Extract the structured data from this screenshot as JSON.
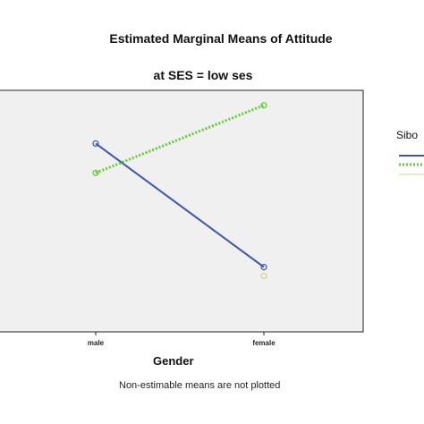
{
  "chart_data": {
    "type": "line",
    "title": "Estimated Marginal Means of Attitude",
    "subtitle": "at SES = low ses",
    "xlabel": "Gender",
    "ylabel": "",
    "categories": [
      "male",
      "female"
    ],
    "ylim": [
      0,
      1
    ],
    "grid": false,
    "legend_title": "Sibo",
    "legend_placement": "right",
    "series": [
      {
        "values": [
          0.64,
          0.22
        ],
        "color": "#3a55b4",
        "style": "solid"
      },
      {
        "values": [
          0.54,
          0.77
        ],
        "color": "#5fcf2f",
        "style": "dotted"
      },
      {
        "values": [
          null,
          0.19
        ],
        "color": "#d9cf8a",
        "style": "solid"
      }
    ],
    "footnote": "Non-estimable means are not plotted",
    "plot_background": "#f0f0f0"
  }
}
